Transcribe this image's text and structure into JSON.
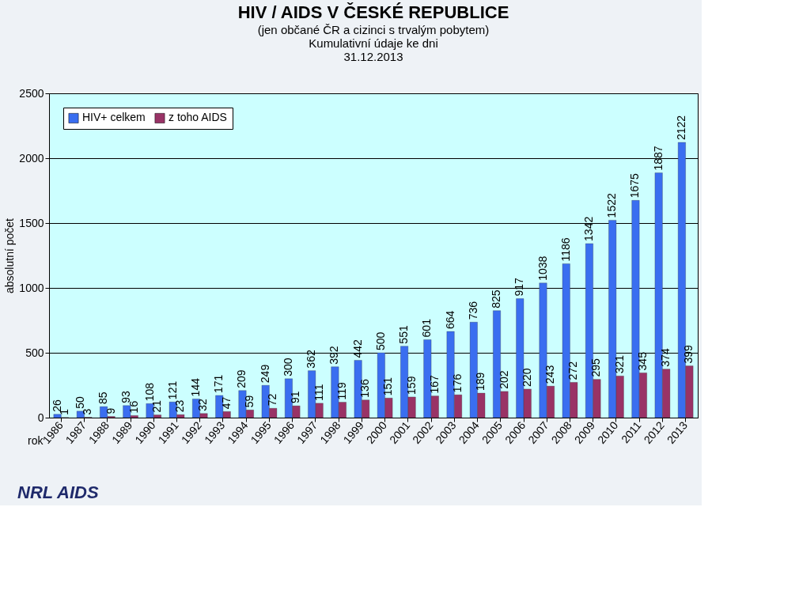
{
  "chart_data": {
    "type": "bar",
    "title": "HIV / AIDS V ČESKÉ REPUBLICE",
    "subtitle": "(jen občané ČR a cizinci s trvalým pobytem)\nKumulativní údaje ke dni\n31.12.2013",
    "xlabel": "rok",
    "ylabel": "absolutní počet",
    "categories": [
      "1986",
      "1987",
      "1988",
      "1989",
      "1990",
      "1991",
      "1992",
      "1993",
      "1994",
      "1995",
      "1996",
      "1997",
      "1998",
      "1999",
      "2000",
      "2001",
      "2002",
      "2003",
      "2004",
      "2005",
      "2006",
      "2007",
      "2008",
      "2009",
      "2010",
      "2011",
      "2012",
      "2013"
    ],
    "series": [
      {
        "name": "HIV+ celkem",
        "color": "#3a6ef0",
        "values": [
          26,
          50,
          85,
          93,
          108,
          121,
          144,
          171,
          209,
          249,
          300,
          362,
          392,
          442,
          500,
          551,
          601,
          664,
          736,
          825,
          917,
          1038,
          1186,
          1342,
          1522,
          1675,
          1887,
          2122
        ]
      },
      {
        "name": "z toho AIDS",
        "color": "#993366",
        "values": [
          1,
          3,
          9,
          16,
          21,
          23,
          32,
          47,
          59,
          72,
          91,
          111,
          119,
          136,
          151,
          159,
          167,
          176,
          189,
          202,
          220,
          243,
          272,
          295,
          321,
          345,
          374,
          399
        ]
      }
    ],
    "ylim": [
      0,
      2500
    ],
    "yticks": [
      0,
      500,
      1000,
      1500,
      2000,
      2500
    ],
    "grid": "y",
    "legend": "top left",
    "data_labels": true,
    "annotations": [
      "NRL AIDS"
    ]
  }
}
